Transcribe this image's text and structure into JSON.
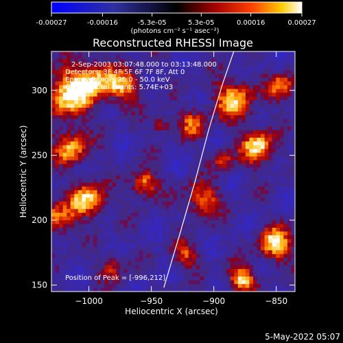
{
  "chart_data": {
    "type": "heatmap",
    "title": "Reconstructed RHESSI Image",
    "xlabel": "Heliocentric X (arcsec)",
    "ylabel": "Heliocentric Y (arcsec)",
    "xlim": [
      -1030,
      -835
    ],
    "ylim": [
      145,
      330
    ],
    "x_ticks": [
      -1000,
      -950,
      -900,
      -850
    ],
    "x_tick_labels": [
      "−1000",
      "−950",
      "−900",
      "−850"
    ],
    "y_ticks": [
      150,
      200,
      250,
      300
    ],
    "y_tick_labels": [
      "150",
      "200",
      "250",
      "300"
    ],
    "colorbar": {
      "range": [
        -0.00027,
        0.00027
      ],
      "ticks": [
        -0.00027,
        -0.00016,
        -5.3e-05,
        5.3e-05,
        0.00016,
        0.00027
      ],
      "tick_labels": [
        "-0.00027",
        "-0.00016",
        "-5.3e-05",
        "5.3e-05",
        "0.00016",
        "0.00027"
      ],
      "unit_label": "(photons cm⁻² s⁻¹ asec⁻²)"
    },
    "annotations": [
      "2-Sep-2003 03:07:48.000 to 03:13:48.000",
      "Detectors: 3F 4F 5F 6F 7F 8F, Att 0",
      "Energy Range: 25.0 - 50.0 keV",
      "Clean    Total counts: 5.74E+03"
    ],
    "peak_label": "Position of Peak = [-996,212]",
    "peak": [
      -996,
      212
    ],
    "limb_curve": [
      [
        -940,
        148
      ],
      [
        -927,
        190
      ],
      [
        -915,
        230
      ],
      [
        -904,
        270
      ],
      [
        -893,
        305
      ],
      [
        -884,
        330
      ]
    ],
    "colors": {
      "low": "#0000ff",
      "zero": "#000000",
      "high": "#ffffff",
      "limb": "#ffffff"
    }
  },
  "footer": {
    "timestamp": "5-May-2022 05:07"
  }
}
